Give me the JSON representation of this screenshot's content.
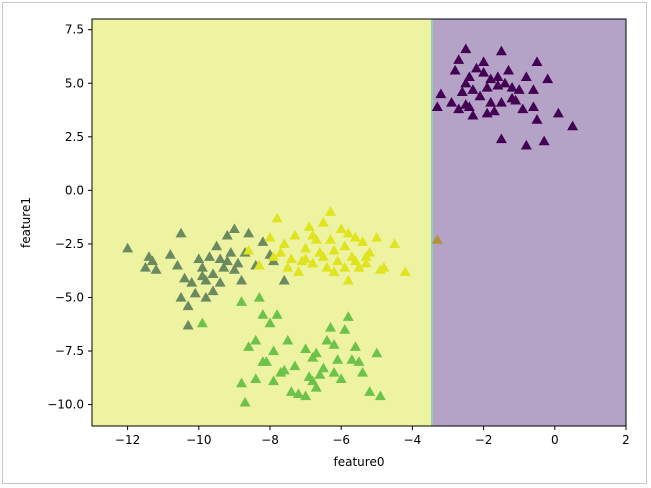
{
  "chart_data": {
    "type": "scatter",
    "xlabel": "feature0",
    "ylabel": "feature1",
    "xlim": [
      -13,
      2
    ],
    "ylim": [
      -11,
      8
    ],
    "x_ticks": [
      -12,
      -10,
      -8,
      -6,
      -4,
      -2,
      0,
      2
    ],
    "y_ticks": [
      -10.0,
      -7.5,
      -5.0,
      -2.5,
      0.0,
      2.5,
      5.0,
      7.5
    ],
    "x_tick_labels": [
      "−12",
      "−10",
      "−8",
      "−6",
      "−4",
      "−2",
      "0",
      "2"
    ],
    "y_tick_labels": [
      "−10.0",
      "−7.5",
      "−5.0",
      "−2.5",
      "0.0",
      "2.5",
      "5.0",
      "7.5"
    ],
    "grid": false,
    "marker": "triangle",
    "decision_regions": [
      {
        "x_range": [
          -13,
          -3.45
        ],
        "color": "#eef3a2"
      },
      {
        "x_range": [
          -3.45,
          2
        ],
        "color": "#b5a3c7"
      }
    ],
    "boundary_x": -3.45,
    "boundary_color": "#8fd0b8",
    "series": [
      {
        "color": "#440154",
        "points": [
          [
            -2,
            6
          ],
          [
            -1.5,
            6.5
          ],
          [
            -3.2,
            4.5
          ],
          [
            -2.5,
            5
          ],
          [
            -2,
            5.5
          ],
          [
            -1.8,
            5.2
          ],
          [
            -1.6,
            5.3
          ],
          [
            -1.4,
            5
          ],
          [
            -1.2,
            4.8
          ],
          [
            -1,
            4.7
          ],
          [
            -0.8,
            5.3
          ],
          [
            -0.5,
            6
          ],
          [
            -0.2,
            5.2
          ],
          [
            -1.2,
            4.3
          ],
          [
            -1.5,
            4.1
          ],
          [
            -1.7,
            3.7
          ],
          [
            -2.1,
            4.4
          ],
          [
            -2.3,
            4.7
          ],
          [
            -2.5,
            4
          ],
          [
            -2.9,
            4.1
          ],
          [
            -3.3,
            3.9
          ],
          [
            -2.7,
            3.8
          ],
          [
            -0.9,
            3.8
          ],
          [
            -0.6,
            3.9
          ],
          [
            -0.5,
            3.3
          ],
          [
            -1.5,
            2.4
          ],
          [
            -0.8,
            2.1
          ],
          [
            -0.3,
            2.3
          ],
          [
            0.1,
            3.6
          ],
          [
            0.5,
            3
          ],
          [
            -2.8,
            5.6
          ],
          [
            -2.2,
            5.7
          ],
          [
            -1.9,
            4.8
          ],
          [
            -2.6,
            4.6
          ],
          [
            -1.3,
            5.6
          ],
          [
            -1.1,
            4.2
          ],
          [
            -2.4,
            5.3
          ],
          [
            -1.6,
            4.9
          ],
          [
            -2.3,
            3.5
          ],
          [
            -1.8,
            4.1
          ],
          [
            -0.6,
            4.7
          ],
          [
            -2.7,
            6.1
          ],
          [
            -2.4,
            3.9
          ],
          [
            -1.9,
            3.6
          ],
          [
            -2.5,
            6.6
          ]
        ]
      },
      {
        "color": "#6b8a60",
        "points": [
          [
            -12,
            -2.7
          ],
          [
            -11.5,
            -3.6
          ],
          [
            -11.3,
            -3.3
          ],
          [
            -11.2,
            -3.7
          ],
          [
            -11.4,
            -3.1
          ],
          [
            -10.8,
            -3
          ],
          [
            -10.5,
            -2
          ],
          [
            -10.5,
            -5
          ],
          [
            -10.3,
            -5.4
          ],
          [
            -10.3,
            -6.3
          ],
          [
            -10.1,
            -4.8
          ],
          [
            -10,
            -3.2
          ],
          [
            -9.9,
            -4
          ],
          [
            -9.8,
            -5
          ],
          [
            -9.8,
            -4.2
          ],
          [
            -9.7,
            -3.1
          ],
          [
            -9.6,
            -3.9
          ],
          [
            -9.5,
            -2.6
          ],
          [
            -9.4,
            -4.3
          ],
          [
            -9.3,
            -3.6
          ],
          [
            -9.2,
            -3.3
          ],
          [
            -9.2,
            -2.1
          ],
          [
            -9,
            -3.7
          ],
          [
            -9,
            -1.8
          ],
          [
            -8.8,
            -4.2
          ],
          [
            -8.6,
            -2
          ],
          [
            -8.4,
            -3.5
          ],
          [
            -8.2,
            -2.4
          ],
          [
            -8,
            -3
          ],
          [
            -7.9,
            -3.3
          ],
          [
            -7.6,
            -4.2
          ],
          [
            -10.6,
            -3.5
          ],
          [
            -10.2,
            -4.3
          ],
          [
            -9.9,
            -3.6
          ],
          [
            -9.6,
            -4.7
          ],
          [
            -9.4,
            -3.2
          ],
          [
            -9.1,
            -2.9
          ],
          [
            -8.9,
            -3.4
          ],
          [
            -8.7,
            -2.9
          ],
          [
            -10.4,
            -4.1
          ]
        ]
      },
      {
        "color": "#dfe320",
        "points": [
          [
            -8,
            -2.2
          ],
          [
            -7.8,
            -1.3
          ],
          [
            -7.6,
            -2.5
          ],
          [
            -7.4,
            -3.2
          ],
          [
            -7.3,
            -2.1
          ],
          [
            -7.2,
            -3.8
          ],
          [
            -7,
            -2.7
          ],
          [
            -6.9,
            -1.7
          ],
          [
            -6.8,
            -3.4
          ],
          [
            -6.7,
            -2.3
          ],
          [
            -6.6,
            -2.9
          ],
          [
            -6.5,
            -1.5
          ],
          [
            -6.4,
            -3.6
          ],
          [
            -6.3,
            -1
          ],
          [
            -6.2,
            -2.8
          ],
          [
            -6.1,
            -3.3
          ],
          [
            -6,
            -1.8
          ],
          [
            -5.9,
            -2.6
          ],
          [
            -5.8,
            -4.2
          ],
          [
            -5.7,
            -3.1
          ],
          [
            -5.6,
            -2.2
          ],
          [
            -5.5,
            -3.6
          ],
          [
            -5.4,
            -2.4
          ],
          [
            -5.3,
            -3.4
          ],
          [
            -5.2,
            -2.9
          ],
          [
            -5,
            -2.2
          ],
          [
            -4.8,
            -3.6
          ],
          [
            -4.5,
            -2.5
          ],
          [
            -4.2,
            -3.8
          ],
          [
            -8.6,
            -2.8
          ],
          [
            -8.3,
            -3.5
          ],
          [
            -7.9,
            -3.1
          ],
          [
            -7.5,
            -3.6
          ],
          [
            -7.1,
            -3.3
          ],
          [
            -6.5,
            -3.1
          ],
          [
            -6.2,
            -3.8
          ],
          [
            -5.9,
            -3.6
          ],
          [
            -5.6,
            -3.3
          ],
          [
            -4.9,
            -3.7
          ],
          [
            -7.7,
            -2.9
          ],
          [
            -6.8,
            -2.1
          ],
          [
            -6.3,
            -2.3
          ],
          [
            -5.3,
            -3.1
          ],
          [
            -5.8,
            -2
          ],
          [
            -7,
            -3.2
          ]
        ]
      },
      {
        "color": "#6cc24a",
        "points": [
          [
            -8.8,
            -5.2
          ],
          [
            -8.3,
            -5
          ],
          [
            -8.2,
            -5.8
          ],
          [
            -8,
            -6.2
          ],
          [
            -7.8,
            -5.8
          ],
          [
            -8.6,
            -7.3
          ],
          [
            -8.4,
            -7
          ],
          [
            -8.1,
            -8
          ],
          [
            -7.9,
            -7.5
          ],
          [
            -7.7,
            -8.5
          ],
          [
            -7.5,
            -7
          ],
          [
            -7.3,
            -8.2
          ],
          [
            -7.2,
            -9.5
          ],
          [
            -7,
            -7.4
          ],
          [
            -6.9,
            -8.7
          ],
          [
            -6.8,
            -7.8
          ],
          [
            -6.7,
            -9.2
          ],
          [
            -6.5,
            -8.3
          ],
          [
            -6.4,
            -7
          ],
          [
            -6.3,
            -6.4
          ],
          [
            -6.2,
            -8.5
          ],
          [
            -6.1,
            -7.9
          ],
          [
            -5.9,
            -6.5
          ],
          [
            -5.8,
            -5.9
          ],
          [
            -5.7,
            -7.9
          ],
          [
            -5.6,
            -7.3
          ],
          [
            -5.4,
            -8.5
          ],
          [
            -5.2,
            -9.4
          ],
          [
            -5,
            -7.6
          ],
          [
            -4.9,
            -9.6
          ],
          [
            -8.8,
            -9
          ],
          [
            -8.4,
            -8.8
          ],
          [
            -8.2,
            -8
          ],
          [
            -7.9,
            -8.9
          ],
          [
            -7.6,
            -8.4
          ],
          [
            -7.4,
            -9.4
          ],
          [
            -7,
            -9.6
          ],
          [
            -6.8,
            -8.9
          ],
          [
            -6.6,
            -8.6
          ],
          [
            -6.2,
            -7.2
          ],
          [
            -9.9,
            -6.2
          ],
          [
            -8.7,
            -9.9
          ],
          [
            -6,
            -8.8
          ],
          [
            -5.5,
            -8
          ],
          [
            -6.7,
            -7.6
          ]
        ]
      },
      {
        "color": "#b5933a",
        "points": [
          [
            -3.3,
            -2.3
          ]
        ]
      }
    ]
  }
}
